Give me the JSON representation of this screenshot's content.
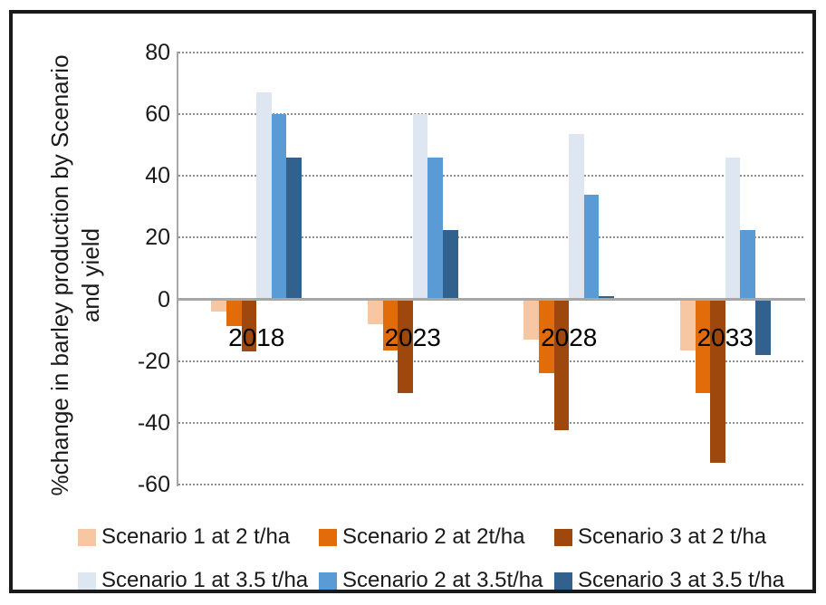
{
  "figure": {
    "background": "#FFFFFF",
    "border_color": "#1A1A1A",
    "axis_color": "#A6A6A6",
    "grid_color": "#8F8F8F"
  },
  "chart_data": {
    "type": "bar",
    "title": "",
    "xlabel": "",
    "ylabel": "%change in barley production by Scenario and yield",
    "ylabel_lines": [
      "%change in barley production by Scenario",
      "and yield"
    ],
    "categories": [
      "2018",
      "2023",
      "2028",
      "2033"
    ],
    "series": [
      {
        "name": "Scenario 1 at 2 t/ha",
        "color": "#F7C7A3",
        "values": [
          -4,
          -8,
          -13,
          -16.5
        ]
      },
      {
        "name": "Scenario 2 at 2t/ha",
        "color": "#E36C0A",
        "values": [
          -8.5,
          -16.5,
          -24,
          -30.5
        ]
      },
      {
        "name": "Scenario 3 at 2 t/ha",
        "color": "#9E480E",
        "values": [
          -17,
          -30.5,
          -42.5,
          -53
        ]
      },
      {
        "name": "Scenario 1 at 3.5 t/ha",
        "color": "#DEE6F2",
        "values": [
          67,
          60,
          53.5,
          46
        ]
      },
      {
        "name": "Scenario 2 at 3.5t/ha",
        "color": "#5B9BD5",
        "values": [
          60,
          46,
          34,
          22.5
        ]
      },
      {
        "name": "Scenario 3 at 3.5 t/ha",
        "color": "#32618E",
        "values": [
          46,
          22.5,
          1,
          -18
        ]
      }
    ],
    "ylim": [
      -60,
      80
    ],
    "yticks": [
      80,
      60,
      40,
      20,
      0,
      -20,
      -40,
      -60
    ],
    "grid": "horizontal dotted",
    "legend_position": "bottom, two rows of three (row 1: 2 t/ha series, row 2: 3.5 t/ha series)"
  }
}
